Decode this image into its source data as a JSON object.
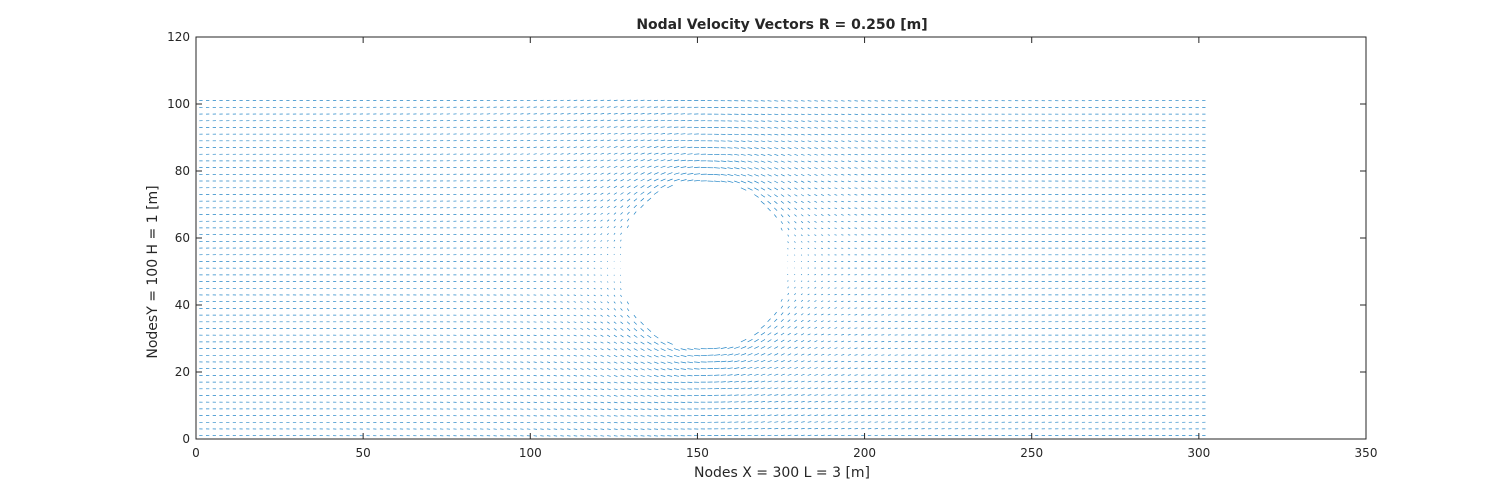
{
  "chart_data": {
    "type": "quiver",
    "title": "Nodal Velocity Vectors R = 0.250 [m]",
    "xlabel": "Nodes X  = 300      L  =  3  [m]",
    "ylabel": "NodesY  = 100      H  =  1  [m]",
    "xlim": [
      0,
      350
    ],
    "ylim": [
      0,
      120
    ],
    "xticks": [
      0,
      50,
      100,
      150,
      200,
      250,
      300,
      350
    ],
    "yticks": [
      0,
      20,
      40,
      60,
      80,
      100,
      120
    ],
    "grid": false,
    "domain": {
      "x": [
        1,
        301
      ],
      "y": [
        1,
        101
      ]
    },
    "obstacle": {
      "shape": "circle",
      "cx": 152,
      "cy": 52,
      "r": 25
    },
    "vector_color": "#0072BD"
  }
}
